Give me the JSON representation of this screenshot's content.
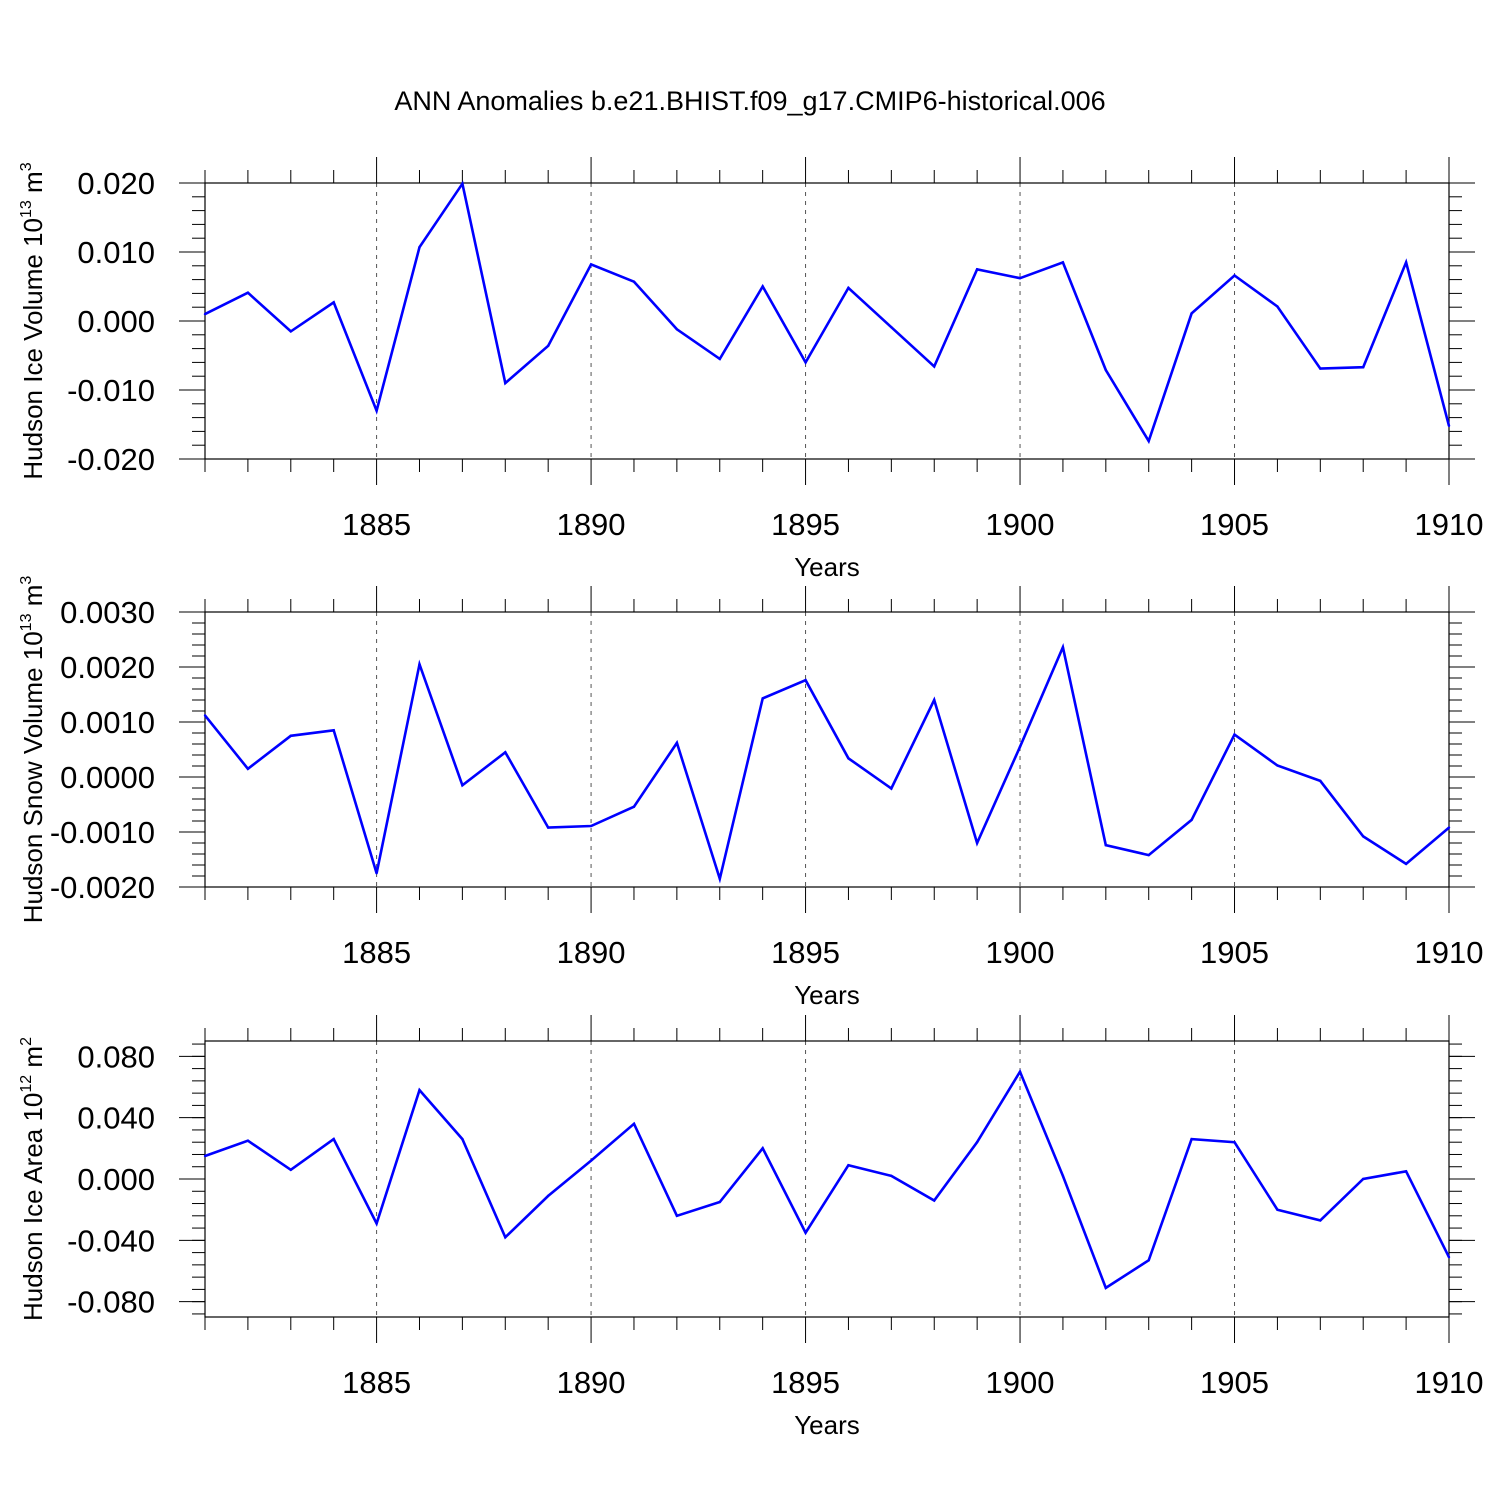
{
  "title": "ANN Anomalies b.e21.BHIST.f09_g17.CMIP6-historical.006",
  "chart_data": [
    {
      "type": "line",
      "title": "",
      "xlabel": "Years",
      "ylabel": "Hudson Ice Volume 10",
      "ylabel_exp": "13",
      "ylabel_unit": " m",
      "ylabel_unit_exp": "3",
      "xlim": [
        1881,
        1910
      ],
      "ylim": [
        -0.02,
        0.02
      ],
      "yticks": [
        -0.02,
        -0.01,
        0.0,
        0.01,
        0.02
      ],
      "ytick_labels": [
        "-0.020",
        "-0.010",
        "0.000",
        "0.010",
        "0.020"
      ],
      "xticks": [
        1885,
        1890,
        1895,
        1900,
        1905,
        1910
      ],
      "xtick_labels": [
        "1885",
        "1890",
        "1895",
        "1900",
        "1905",
        "1910"
      ],
      "grid": "vertical dashed at major x ticks",
      "color": "#0000ff",
      "x": [
        1881,
        1882,
        1883,
        1884,
        1885,
        1886,
        1887,
        1888,
        1889,
        1890,
        1891,
        1892,
        1893,
        1894,
        1895,
        1896,
        1897,
        1898,
        1899,
        1900,
        1901,
        1902,
        1903,
        1904,
        1905,
        1906,
        1907,
        1908,
        1909,
        1910
      ],
      "values": [
        0.001,
        0.0041,
        -0.0015,
        0.0027,
        -0.013,
        0.0107,
        0.0199,
        -0.009,
        -0.0036,
        0.0082,
        0.0057,
        -0.0012,
        -0.0055,
        0.005,
        -0.006,
        0.0048,
        -0.0009,
        -0.0066,
        0.0075,
        0.0062,
        0.0085,
        -0.0071,
        -0.0174,
        0.0011,
        0.0066,
        0.0021,
        -0.0069,
        -0.0067,
        0.0085,
        -0.0152
      ]
    },
    {
      "type": "line",
      "title": "",
      "xlabel": "Years",
      "ylabel": "Hudson Snow Volume 10",
      "ylabel_exp": "13",
      "ylabel_unit": " m",
      "ylabel_unit_exp": "3",
      "xlim": [
        1881,
        1910
      ],
      "ylim": [
        -0.002,
        0.003
      ],
      "yticks": [
        -0.002,
        -0.001,
        0.0,
        0.001,
        0.002,
        0.003
      ],
      "ytick_labels": [
        "-0.0020",
        "-0.0010",
        "0.0000",
        "0.0010",
        "0.0020",
        "0.0030"
      ],
      "xticks": [
        1885,
        1890,
        1895,
        1900,
        1905,
        1910
      ],
      "xtick_labels": [
        "1885",
        "1890",
        "1895",
        "1900",
        "1905",
        "1910"
      ],
      "grid": "vertical dashed at major x ticks",
      "color": "#0000ff",
      "x": [
        1881,
        1882,
        1883,
        1884,
        1885,
        1886,
        1887,
        1888,
        1889,
        1890,
        1891,
        1892,
        1893,
        1894,
        1895,
        1896,
        1897,
        1898,
        1899,
        1900,
        1901,
        1902,
        1903,
        1904,
        1905,
        1906,
        1907,
        1908,
        1909,
        1910
      ],
      "values": [
        0.00112,
        0.00015,
        0.00075,
        0.00085,
        -0.00175,
        0.00205,
        -0.00015,
        0.00045,
        -0.00092,
        -0.00089,
        -0.00054,
        0.00062,
        -0.00185,
        0.00143,
        0.00176,
        0.00034,
        -0.00021,
        0.0014,
        -0.0012,
        0.00055,
        0.00236,
        -0.00124,
        -0.00142,
        -0.00078,
        0.00077,
        0.00021,
        -7e-05,
        -0.00108,
        -0.00158,
        -0.00092
      ]
    },
    {
      "type": "line",
      "title": "",
      "xlabel": "Years",
      "ylabel": "Hudson Ice Area 10",
      "ylabel_exp": "12",
      "ylabel_unit": " m",
      "ylabel_unit_exp": "2",
      "xlim": [
        1881,
        1910
      ],
      "ylim": [
        -0.09,
        0.09
      ],
      "yticks": [
        -0.08,
        -0.04,
        0.0,
        0.04,
        0.08
      ],
      "ytick_labels": [
        "-0.080",
        "-0.040",
        "0.000",
        "0.040",
        "0.080"
      ],
      "xticks": [
        1885,
        1890,
        1895,
        1900,
        1905,
        1910
      ],
      "xtick_labels": [
        "1885",
        "1890",
        "1895",
        "1900",
        "1905",
        "1910"
      ],
      "grid": "vertical dashed at major x ticks",
      "color": "#0000ff",
      "x": [
        1881,
        1882,
        1883,
        1884,
        1885,
        1886,
        1887,
        1888,
        1889,
        1890,
        1891,
        1892,
        1893,
        1894,
        1895,
        1896,
        1897,
        1898,
        1899,
        1900,
        1901,
        1902,
        1903,
        1904,
        1905,
        1906,
        1907,
        1908,
        1909,
        1910
      ],
      "values": [
        0.015,
        0.025,
        0.006,
        0.026,
        -0.029,
        0.058,
        0.026,
        -0.038,
        -0.011,
        0.012,
        0.036,
        -0.024,
        -0.015,
        0.02,
        -0.035,
        0.009,
        0.002,
        -0.014,
        0.024,
        0.07,
        0.002,
        -0.071,
        -0.053,
        0.026,
        0.024,
        -0.02,
        -0.027,
        0.0,
        0.005,
        -0.051
      ]
    }
  ]
}
